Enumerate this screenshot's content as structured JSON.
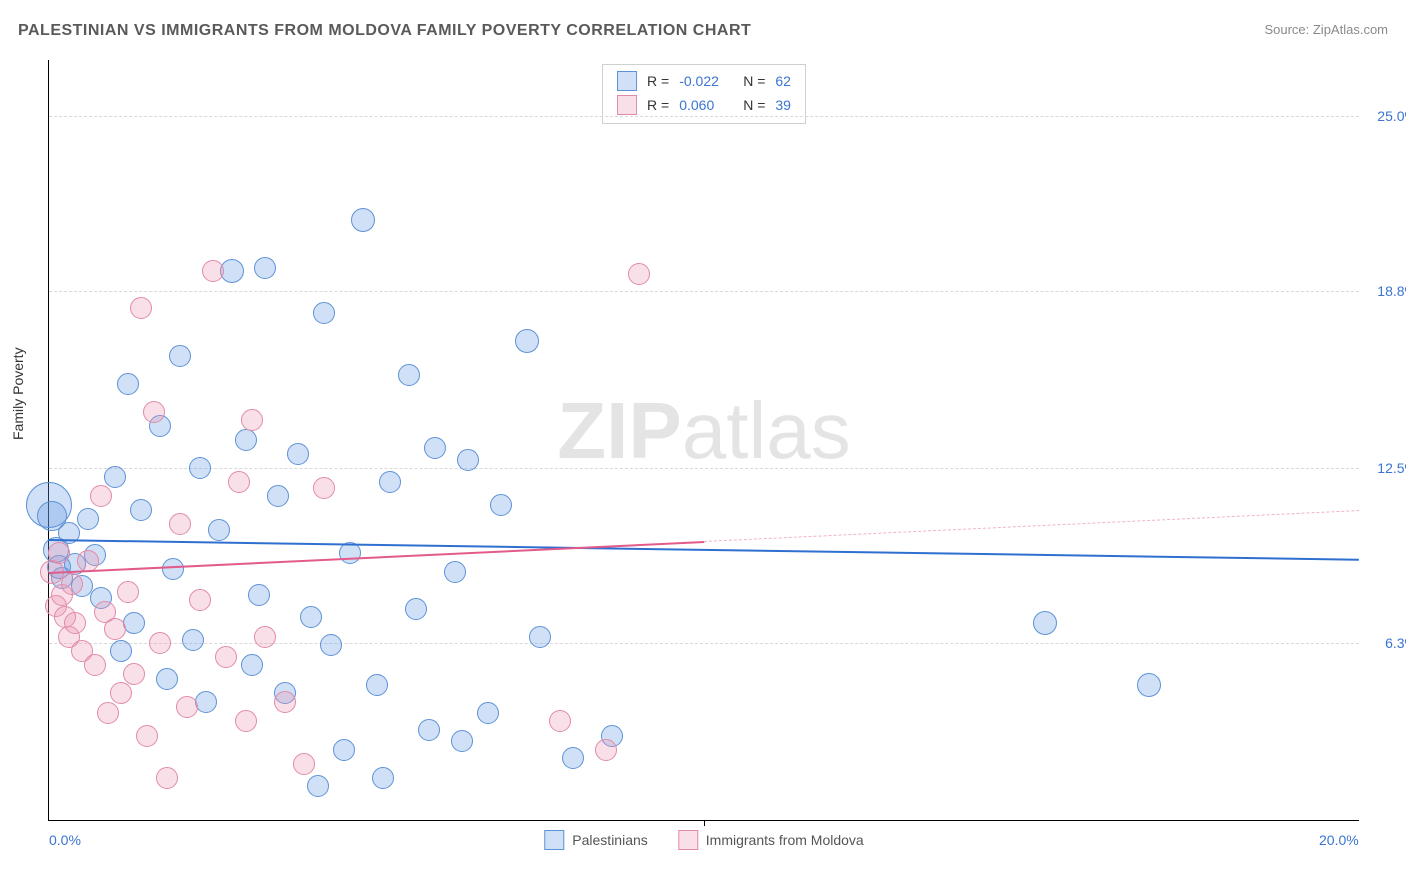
{
  "title": "PALESTINIAN VS IMMIGRANTS FROM MOLDOVA FAMILY POVERTY CORRELATION CHART",
  "source": "Source: ZipAtlas.com",
  "watermark_bold": "ZIP",
  "watermark_light": "atlas",
  "ylabel": "Family Poverty",
  "chart": {
    "type": "scatter",
    "xlim": [
      0,
      20
    ],
    "ylim": [
      0,
      27
    ],
    "x_ticks": [
      {
        "v": 0,
        "label": "0.0%"
      },
      {
        "v": 20,
        "label": "20.0%"
      }
    ],
    "y_gridlines": [
      6.3,
      12.5,
      18.8,
      25.0
    ],
    "y_tick_labels": [
      "6.3%",
      "12.5%",
      "18.8%",
      "25.0%"
    ],
    "x_midtick": 10,
    "background_color": "#ffffff",
    "grid_color": "#d9d9d9",
    "tick_color": "#3b74d1",
    "series": [
      {
        "name": "Palestinians",
        "color_fill": "rgba(99,151,225,0.30)",
        "color_stroke": "#5e92d6",
        "marker_radius": 9,
        "R": "-0.022",
        "N": "62",
        "trend": {
          "y_start": 10.0,
          "y_end": 9.3,
          "solid_color": "#2f6fd0",
          "x_solid_end": 20
        },
        "points": [
          [
            0.0,
            11.2,
            22
          ],
          [
            0.05,
            10.8,
            14
          ],
          [
            0.1,
            9.6,
            12
          ],
          [
            0.15,
            9.0,
            11
          ],
          [
            0.2,
            8.6,
            10
          ],
          [
            0.3,
            10.2,
            10
          ],
          [
            0.4,
            9.1,
            10
          ],
          [
            0.5,
            8.3,
            10
          ],
          [
            0.6,
            10.7,
            10
          ],
          [
            0.7,
            9.4,
            10
          ],
          [
            0.8,
            7.9,
            10
          ],
          [
            1.0,
            12.2,
            10
          ],
          [
            1.1,
            6.0,
            10
          ],
          [
            1.2,
            15.5,
            10
          ],
          [
            1.3,
            7.0,
            10
          ],
          [
            1.4,
            11.0,
            10
          ],
          [
            1.7,
            14.0,
            10
          ],
          [
            1.8,
            5.0,
            10
          ],
          [
            1.9,
            8.9,
            10
          ],
          [
            2.0,
            16.5,
            10
          ],
          [
            2.2,
            6.4,
            10
          ],
          [
            2.3,
            12.5,
            10
          ],
          [
            2.4,
            4.2,
            10
          ],
          [
            2.6,
            10.3,
            10
          ],
          [
            2.8,
            19.5,
            11
          ],
          [
            3.0,
            13.5,
            10
          ],
          [
            3.1,
            5.5,
            10
          ],
          [
            3.2,
            8.0,
            10
          ],
          [
            3.3,
            19.6,
            10
          ],
          [
            3.5,
            11.5,
            10
          ],
          [
            3.6,
            4.5,
            10
          ],
          [
            3.8,
            13.0,
            10
          ],
          [
            4.0,
            7.2,
            10
          ],
          [
            4.1,
            1.2,
            10
          ],
          [
            4.2,
            18.0,
            10
          ],
          [
            4.3,
            6.2,
            10
          ],
          [
            4.5,
            2.5,
            10
          ],
          [
            4.6,
            9.5,
            10
          ],
          [
            4.8,
            21.3,
            11
          ],
          [
            5.0,
            4.8,
            10
          ],
          [
            5.1,
            1.5,
            10
          ],
          [
            5.2,
            12.0,
            10
          ],
          [
            5.5,
            15.8,
            10
          ],
          [
            5.6,
            7.5,
            10
          ],
          [
            5.8,
            3.2,
            10
          ],
          [
            5.9,
            13.2,
            10
          ],
          [
            6.2,
            8.8,
            10
          ],
          [
            6.3,
            2.8,
            10
          ],
          [
            6.4,
            12.8,
            10
          ],
          [
            6.7,
            3.8,
            10
          ],
          [
            6.9,
            11.2,
            10
          ],
          [
            7.3,
            17.0,
            11
          ],
          [
            7.5,
            6.5,
            10
          ],
          [
            8.0,
            2.2,
            10
          ],
          [
            8.6,
            3.0,
            10
          ],
          [
            15.2,
            7.0,
            11
          ],
          [
            16.8,
            4.8,
            11
          ]
        ]
      },
      {
        "name": "Immigrants from Moldova",
        "color_fill": "rgba(236,150,180,0.30)",
        "color_stroke": "#e18ba8",
        "marker_radius": 9,
        "R": "0.060",
        "N": "39",
        "trend": {
          "y_start": 8.8,
          "y_end": 11.0,
          "solid_color": "#e35b8b",
          "x_solid_end": 10,
          "dash_color": "#f0b3c6"
        },
        "points": [
          [
            0.05,
            8.8,
            11
          ],
          [
            0.1,
            7.6,
            10
          ],
          [
            0.15,
            9.5,
            10
          ],
          [
            0.2,
            8.0,
            10
          ],
          [
            0.25,
            7.2,
            10
          ],
          [
            0.3,
            6.5,
            10
          ],
          [
            0.35,
            8.4,
            10
          ],
          [
            0.4,
            7.0,
            10
          ],
          [
            0.5,
            6.0,
            10
          ],
          [
            0.6,
            9.2,
            10
          ],
          [
            0.7,
            5.5,
            10
          ],
          [
            0.8,
            11.5,
            10
          ],
          [
            0.85,
            7.4,
            10
          ],
          [
            0.9,
            3.8,
            10
          ],
          [
            1.0,
            6.8,
            10
          ],
          [
            1.1,
            4.5,
            10
          ],
          [
            1.2,
            8.1,
            10
          ],
          [
            1.3,
            5.2,
            10
          ],
          [
            1.4,
            18.2,
            10
          ],
          [
            1.5,
            3.0,
            10
          ],
          [
            1.6,
            14.5,
            10
          ],
          [
            1.7,
            6.3,
            10
          ],
          [
            1.8,
            1.5,
            10
          ],
          [
            2.0,
            10.5,
            10
          ],
          [
            2.1,
            4.0,
            10
          ],
          [
            2.3,
            7.8,
            10
          ],
          [
            2.5,
            19.5,
            10
          ],
          [
            2.7,
            5.8,
            10
          ],
          [
            2.9,
            12.0,
            10
          ],
          [
            3.0,
            3.5,
            10
          ],
          [
            3.1,
            14.2,
            10
          ],
          [
            3.3,
            6.5,
            10
          ],
          [
            3.6,
            4.2,
            10
          ],
          [
            3.9,
            2.0,
            10
          ],
          [
            4.2,
            11.8,
            10
          ],
          [
            7.8,
            3.5,
            10
          ],
          [
            8.5,
            2.5,
            10
          ],
          [
            9.0,
            19.4,
            10
          ]
        ]
      }
    ]
  },
  "legend_bottom": [
    {
      "label": "Palestinians",
      "fill": "rgba(99,151,225,0.30)",
      "stroke": "#5e92d6"
    },
    {
      "label": "Immigrants from Moldova",
      "fill": "rgba(236,150,180,0.30)",
      "stroke": "#e18ba8"
    }
  ]
}
